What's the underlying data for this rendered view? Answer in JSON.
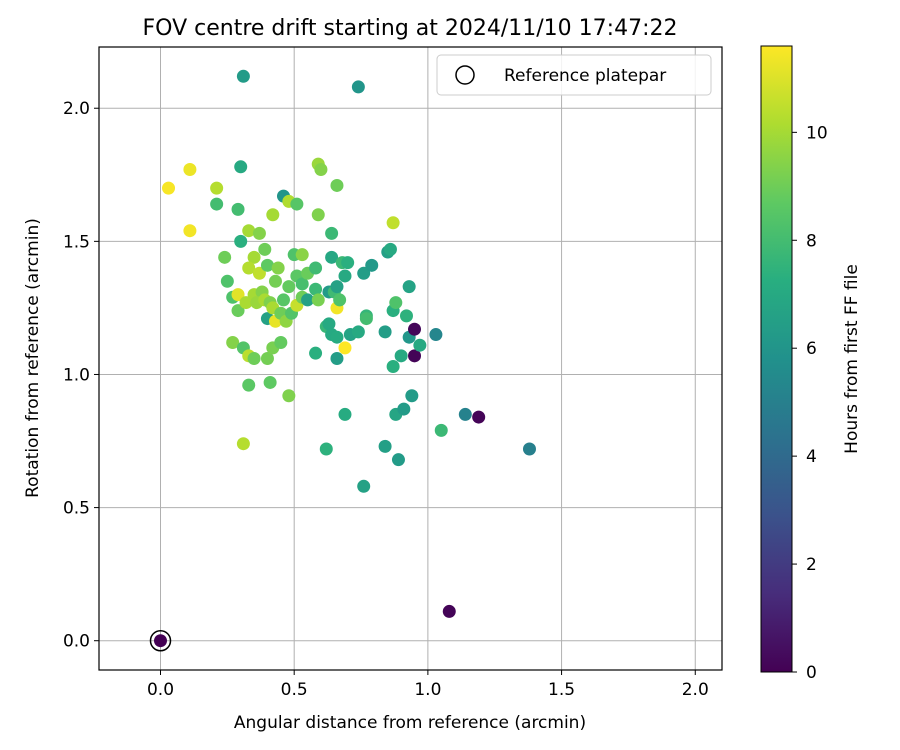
{
  "chart_data": {
    "type": "scatter",
    "title": "FOV centre drift starting at 2024/11/10 17:47:22",
    "xlabel": "Angular distance from reference (arcmin)",
    "ylabel": "Rotation from reference (arcmin)",
    "xlim": [
      -0.23,
      2.1
    ],
    "ylim": [
      -0.11,
      2.23
    ],
    "xticks": [
      0.0,
      0.5,
      1.0,
      1.5,
      2.0
    ],
    "yticks": [
      0.0,
      0.5,
      1.0,
      1.5,
      2.0
    ],
    "xtick_labels": [
      "0.0",
      "0.5",
      "1.0",
      "1.5",
      "2.0"
    ],
    "ytick_labels": [
      "0.0",
      "0.5",
      "1.0",
      "1.5",
      "2.0"
    ],
    "grid": true,
    "legend": {
      "position": "top-right",
      "entries": [
        "Reference platepar"
      ]
    },
    "reference_point": {
      "name": "Reference platepar",
      "x": 0.0,
      "y": 0.0,
      "c": 0.0
    },
    "colorbar": {
      "label": "Hours from first FF file",
      "range": [
        0,
        11.6
      ],
      "ticks": [
        0,
        2,
        4,
        6,
        8,
        10
      ],
      "tick_labels": [
        "0",
        "2",
        "4",
        "6",
        "8",
        "10"
      ],
      "colormap": "viridis"
    },
    "points": [
      {
        "x": 0.31,
        "y": 2.12,
        "c": 6.3
      },
      {
        "x": 0.74,
        "y": 2.08,
        "c": 6.0
      },
      {
        "x": 0.03,
        "y": 1.7,
        "c": 11.5
      },
      {
        "x": 0.11,
        "y": 1.77,
        "c": 11.3
      },
      {
        "x": 0.11,
        "y": 1.54,
        "c": 11.4
      },
      {
        "x": 0.21,
        "y": 1.7,
        "c": 10.3
      },
      {
        "x": 0.21,
        "y": 1.64,
        "c": 8.0
      },
      {
        "x": 0.3,
        "y": 1.78,
        "c": 7.0
      },
      {
        "x": 0.29,
        "y": 1.62,
        "c": 8.0
      },
      {
        "x": 0.3,
        "y": 1.5,
        "c": 7.3
      },
      {
        "x": 0.33,
        "y": 1.54,
        "c": 10.0
      },
      {
        "x": 0.37,
        "y": 1.53,
        "c": 9.4
      },
      {
        "x": 0.24,
        "y": 1.44,
        "c": 9.0
      },
      {
        "x": 0.25,
        "y": 1.35,
        "c": 8.3
      },
      {
        "x": 0.39,
        "y": 1.47,
        "c": 9.0
      },
      {
        "x": 0.42,
        "y": 1.6,
        "c": 10.0
      },
      {
        "x": 0.46,
        "y": 1.67,
        "c": 6.0
      },
      {
        "x": 0.48,
        "y": 1.65,
        "c": 10.2
      },
      {
        "x": 0.51,
        "y": 1.64,
        "c": 8.5
      },
      {
        "x": 0.59,
        "y": 1.79,
        "c": 9.8
      },
      {
        "x": 0.6,
        "y": 1.77,
        "c": 9.4
      },
      {
        "x": 0.66,
        "y": 1.71,
        "c": 9.0
      },
      {
        "x": 0.59,
        "y": 1.6,
        "c": 9.3
      },
      {
        "x": 0.64,
        "y": 1.53,
        "c": 7.8
      },
      {
        "x": 0.5,
        "y": 1.45,
        "c": 8.3
      },
      {
        "x": 0.53,
        "y": 1.45,
        "c": 9.5
      },
      {
        "x": 0.35,
        "y": 1.44,
        "c": 10.0
      },
      {
        "x": 0.33,
        "y": 1.4,
        "c": 10.3
      },
      {
        "x": 0.37,
        "y": 1.38,
        "c": 10.5
      },
      {
        "x": 0.4,
        "y": 1.41,
        "c": 8.7
      },
      {
        "x": 0.44,
        "y": 1.4,
        "c": 9.4
      },
      {
        "x": 0.43,
        "y": 1.35,
        "c": 9.1
      },
      {
        "x": 0.48,
        "y": 1.33,
        "c": 8.8
      },
      {
        "x": 0.51,
        "y": 1.37,
        "c": 8.6
      },
      {
        "x": 0.53,
        "y": 1.34,
        "c": 8.1
      },
      {
        "x": 0.55,
        "y": 1.38,
        "c": 8.9
      },
      {
        "x": 0.58,
        "y": 1.4,
        "c": 7.9
      },
      {
        "x": 0.64,
        "y": 1.44,
        "c": 6.9
      },
      {
        "x": 0.68,
        "y": 1.42,
        "c": 7.8
      },
      {
        "x": 0.7,
        "y": 1.42,
        "c": 7.3
      },
      {
        "x": 0.69,
        "y": 1.37,
        "c": 7.0
      },
      {
        "x": 0.76,
        "y": 1.38,
        "c": 6.4
      },
      {
        "x": 0.79,
        "y": 1.41,
        "c": 6.2
      },
      {
        "x": 0.85,
        "y": 1.46,
        "c": 6.5
      },
      {
        "x": 0.86,
        "y": 1.47,
        "c": 7.0
      },
      {
        "x": 0.87,
        "y": 1.57,
        "c": 10.5
      },
      {
        "x": 0.27,
        "y": 1.29,
        "c": 8.3
      },
      {
        "x": 0.29,
        "y": 1.3,
        "c": 11.1
      },
      {
        "x": 0.29,
        "y": 1.24,
        "c": 8.9
      },
      {
        "x": 0.32,
        "y": 1.27,
        "c": 10.1
      },
      {
        "x": 0.35,
        "y": 1.3,
        "c": 10.0
      },
      {
        "x": 0.38,
        "y": 1.31,
        "c": 9.4
      },
      {
        "x": 0.36,
        "y": 1.27,
        "c": 9.8
      },
      {
        "x": 0.39,
        "y": 1.28,
        "c": 10.1
      },
      {
        "x": 0.41,
        "y": 1.27,
        "c": 9.3
      },
      {
        "x": 0.4,
        "y": 1.21,
        "c": 6.6
      },
      {
        "x": 0.42,
        "y": 1.25,
        "c": 10.1
      },
      {
        "x": 0.43,
        "y": 1.2,
        "c": 11.2
      },
      {
        "x": 0.45,
        "y": 1.23,
        "c": 9.0
      },
      {
        "x": 0.46,
        "y": 1.28,
        "c": 8.5
      },
      {
        "x": 0.47,
        "y": 1.2,
        "c": 9.6
      },
      {
        "x": 0.49,
        "y": 1.23,
        "c": 8.4
      },
      {
        "x": 0.51,
        "y": 1.26,
        "c": 10.6
      },
      {
        "x": 0.53,
        "y": 1.29,
        "c": 9.0
      },
      {
        "x": 0.55,
        "y": 1.28,
        "c": 6.6
      },
      {
        "x": 0.58,
        "y": 1.32,
        "c": 7.8
      },
      {
        "x": 0.59,
        "y": 1.28,
        "c": 9.2
      },
      {
        "x": 0.63,
        "y": 1.31,
        "c": 6.3
      },
      {
        "x": 0.65,
        "y": 1.31,
        "c": 7.9
      },
      {
        "x": 0.66,
        "y": 1.33,
        "c": 6.6
      },
      {
        "x": 0.66,
        "y": 1.25,
        "c": 11.4
      },
      {
        "x": 0.67,
        "y": 1.28,
        "c": 8.3
      },
      {
        "x": 0.62,
        "y": 1.18,
        "c": 7.7
      },
      {
        "x": 0.63,
        "y": 1.19,
        "c": 7.0
      },
      {
        "x": 0.64,
        "y": 1.15,
        "c": 7.0
      },
      {
        "x": 0.66,
        "y": 1.14,
        "c": 7.1
      },
      {
        "x": 0.69,
        "y": 1.1,
        "c": 11.6
      },
      {
        "x": 0.71,
        "y": 1.15,
        "c": 6.7
      },
      {
        "x": 0.74,
        "y": 1.16,
        "c": 7.0
      },
      {
        "x": 0.77,
        "y": 1.22,
        "c": 7.6
      },
      {
        "x": 0.77,
        "y": 1.21,
        "c": 8.0
      },
      {
        "x": 0.84,
        "y": 1.16,
        "c": 6.4
      },
      {
        "x": 0.87,
        "y": 1.24,
        "c": 7.3
      },
      {
        "x": 0.88,
        "y": 1.27,
        "c": 8.3
      },
      {
        "x": 0.92,
        "y": 1.22,
        "c": 7.4
      },
      {
        "x": 0.93,
        "y": 1.33,
        "c": 6.7
      },
      {
        "x": 0.93,
        "y": 1.14,
        "c": 6.1
      },
      {
        "x": 0.95,
        "y": 1.17,
        "c": 0.2
      },
      {
        "x": 0.95,
        "y": 1.07,
        "c": 0.1
      },
      {
        "x": 0.97,
        "y": 1.11,
        "c": 7.0
      },
      {
        "x": 0.9,
        "y": 1.07,
        "c": 7.0
      },
      {
        "x": 0.87,
        "y": 1.03,
        "c": 7.3
      },
      {
        "x": 1.03,
        "y": 1.15,
        "c": 5.3
      },
      {
        "x": 0.27,
        "y": 1.12,
        "c": 9.4
      },
      {
        "x": 0.31,
        "y": 1.1,
        "c": 8.4
      },
      {
        "x": 0.33,
        "y": 1.07,
        "c": 10.4
      },
      {
        "x": 0.35,
        "y": 1.06,
        "c": 9.0
      },
      {
        "x": 0.4,
        "y": 1.06,
        "c": 9.1
      },
      {
        "x": 0.42,
        "y": 1.1,
        "c": 9.2
      },
      {
        "x": 0.45,
        "y": 1.12,
        "c": 8.8
      },
      {
        "x": 0.58,
        "y": 1.08,
        "c": 7.3
      },
      {
        "x": 0.66,
        "y": 1.06,
        "c": 6.4
      },
      {
        "x": 0.33,
        "y": 0.96,
        "c": 8.6
      },
      {
        "x": 0.41,
        "y": 0.97,
        "c": 8.7
      },
      {
        "x": 0.48,
        "y": 0.92,
        "c": 9.3
      },
      {
        "x": 0.69,
        "y": 0.85,
        "c": 7.1
      },
      {
        "x": 0.88,
        "y": 0.85,
        "c": 6.8
      },
      {
        "x": 0.91,
        "y": 0.87,
        "c": 6.3
      },
      {
        "x": 0.94,
        "y": 0.92,
        "c": 6.3
      },
      {
        "x": 1.05,
        "y": 0.79,
        "c": 7.8
      },
      {
        "x": 1.14,
        "y": 0.85,
        "c": 5.1
      },
      {
        "x": 1.19,
        "y": 0.84,
        "c": 0.1
      },
      {
        "x": 0.31,
        "y": 0.74,
        "c": 10.3
      },
      {
        "x": 0.62,
        "y": 0.72,
        "c": 7.4
      },
      {
        "x": 0.84,
        "y": 0.73,
        "c": 6.5
      },
      {
        "x": 0.89,
        "y": 0.68,
        "c": 6.3
      },
      {
        "x": 0.76,
        "y": 0.58,
        "c": 6.6
      },
      {
        "x": 1.38,
        "y": 0.72,
        "c": 5.0
      },
      {
        "x": 1.08,
        "y": 0.11,
        "c": 0.1
      }
    ]
  }
}
